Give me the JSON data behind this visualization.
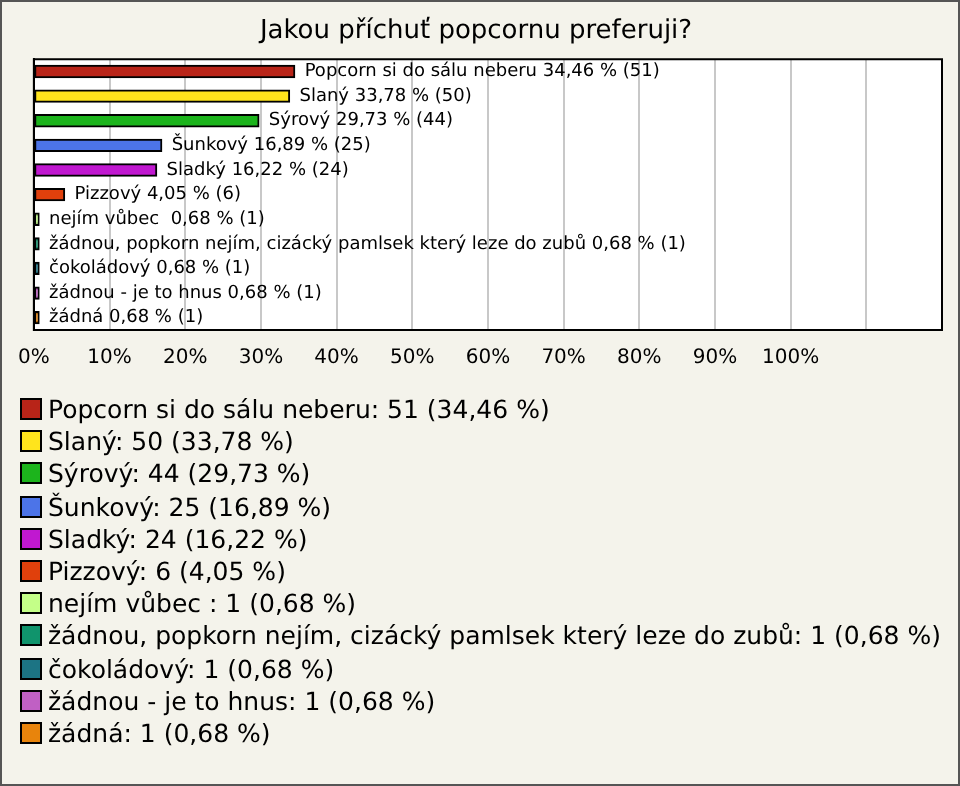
{
  "chart_data": {
    "type": "bar",
    "orientation": "horizontal",
    "title": "Jakou příchuť popcornu preferuji?",
    "categories": [
      "Popcorn si do sálu neberu",
      "Slaný",
      "Sýrový",
      "Šunkový",
      "Sladký",
      "Pizzový",
      "nejím vůbec ",
      "žádnou, popkorn nejím, cizácký pamlsek který leze do zubů",
      "čokoládový",
      "žádnou - je to hnus",
      "žádná"
    ],
    "values": [
      34.46,
      33.78,
      29.73,
      16.89,
      16.22,
      4.05,
      0.68,
      0.68,
      0.68,
      0.68,
      0.68
    ],
    "value_labels": [
      "34,46 % (51)",
      "33,78 % (50)",
      "29,73 % (44)",
      "16,89 % (25)",
      "16,22 % (24)",
      "4,05 % (6)",
      "0,68 % (1)",
      "0,68 % (1)",
      "0,68 % (1)",
      "0,68 % (1)",
      "0,68 % (1)"
    ],
    "colors": [
      "#b82418",
      "#ffe41c",
      "#1cb41c",
      "#4c74e8",
      "#c018d0",
      "#e0400c",
      "#c4ff88",
      "#10946c",
      "#1c7484",
      "#c060c4",
      "#e8840c"
    ],
    "xlim": [
      0,
      120
    ],
    "xticks": [
      {
        "value": 0,
        "label": "0%"
      },
      {
        "value": 10,
        "label": "10%"
      },
      {
        "value": 20,
        "label": "20%"
      },
      {
        "value": 30,
        "label": "30%"
      },
      {
        "value": 40,
        "label": "40%"
      },
      {
        "value": 50,
        "label": "50%"
      },
      {
        "value": 60,
        "label": "60%"
      },
      {
        "value": 70,
        "label": "70%"
      },
      {
        "value": 80,
        "label": "80%"
      },
      {
        "value": 90,
        "label": "90%"
      },
      {
        "value": 100,
        "label": "100%"
      },
      {
        "value": 110,
        "label": null
      }
    ],
    "grid": "x",
    "annotations": [
      "Popcorn si do sálu neberu: 51 (34,46 %)",
      "Slaný: 50 (33,78 %)",
      "Sýrový: 44 (29,73 %)",
      "Šunkový: 25 (16,89 %)",
      "Sladký: 24 (16,22 %)",
      "Pizzový: 6 (4,05 %)",
      "nejím vůbec : 1 (0,68 %)",
      "žádnou, popkorn nejím, cizácký pamlsek který leze do zubů: 1 (0,68 %)",
      "čokoládový: 1 (0,68 %)",
      "žádnou - je to hnus: 1 (0,68 %)",
      "žádná: 1 (0,68 %)"
    ]
  }
}
